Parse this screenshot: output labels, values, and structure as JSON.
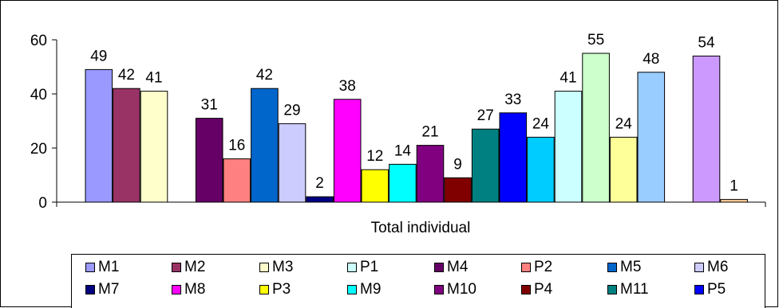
{
  "chart_data": {
    "type": "bar",
    "categories": [
      "Total individual"
    ],
    "ylim": [
      0,
      60
    ],
    "yticks": [
      0,
      20,
      40,
      60
    ],
    "xlabel": "Total individual",
    "grid": false,
    "legend_position": "bottom",
    "series": [
      {
        "name": "M1",
        "value": 49,
        "color": "#9999ff"
      },
      {
        "name": "M2",
        "value": 42,
        "color": "#993366"
      },
      {
        "name": "M3",
        "value": 41,
        "color": "#ffffcc"
      },
      {
        "name": "P1",
        "value": null,
        "color": "#ccffff"
      },
      {
        "name": "M4",
        "value": 31,
        "color": "#660066"
      },
      {
        "name": "P2",
        "value": 16,
        "color": "#ff8080"
      },
      {
        "name": "M5",
        "value": 42,
        "color": "#0066cc"
      },
      {
        "name": "M6",
        "value": 29,
        "color": "#ccccff"
      },
      {
        "name": "M7",
        "value": 2,
        "color": "#000080"
      },
      {
        "name": "M8",
        "value": 38,
        "color": "#ff00ff"
      },
      {
        "name": "P3",
        "value": 12,
        "color": "#ffff00"
      },
      {
        "name": "M9",
        "value": 14,
        "color": "#00ffff"
      },
      {
        "name": "M10",
        "value": 21,
        "color": "#800080"
      },
      {
        "name": "P4",
        "value": 9,
        "color": "#800000"
      },
      {
        "name": "M11",
        "value": 27,
        "color": "#008080"
      },
      {
        "name": "P5",
        "value": 33,
        "color": "#0000ff"
      },
      {
        "name": null,
        "value": 24,
        "color": "#00ccff"
      },
      {
        "name": null,
        "value": 41,
        "color": "#ccffff"
      },
      {
        "name": null,
        "value": 55,
        "color": "#ccffcc"
      },
      {
        "name": null,
        "value": 24,
        "color": "#ffff99"
      },
      {
        "name": null,
        "value": 48,
        "color": "#99ccff"
      },
      {
        "name": null,
        "value": null,
        "color": "#ff99cc"
      },
      {
        "name": null,
        "value": 54,
        "color": "#cc99ff"
      },
      {
        "name": null,
        "value": 1,
        "color": "#ffcc99"
      }
    ],
    "legend": [
      {
        "label": "M1",
        "color": "#9999ff"
      },
      {
        "label": "M2",
        "color": "#993366"
      },
      {
        "label": "M3",
        "color": "#ffffcc"
      },
      {
        "label": "P1",
        "color": "#ccffff"
      },
      {
        "label": "M4",
        "color": "#660066"
      },
      {
        "label": "P2",
        "color": "#ff8080"
      },
      {
        "label": "M5",
        "color": "#0066cc"
      },
      {
        "label": "M6",
        "color": "#ccccff"
      },
      {
        "label": "M7",
        "color": "#000080"
      },
      {
        "label": "M8",
        "color": "#ff00ff"
      },
      {
        "label": "P3",
        "color": "#ffff00"
      },
      {
        "label": "M9",
        "color": "#00ffff"
      },
      {
        "label": "M10",
        "color": "#800080"
      },
      {
        "label": "P4",
        "color": "#800000"
      },
      {
        "label": "M11",
        "color": "#008080"
      },
      {
        "label": "P5",
        "color": "#0000ff"
      }
    ]
  }
}
